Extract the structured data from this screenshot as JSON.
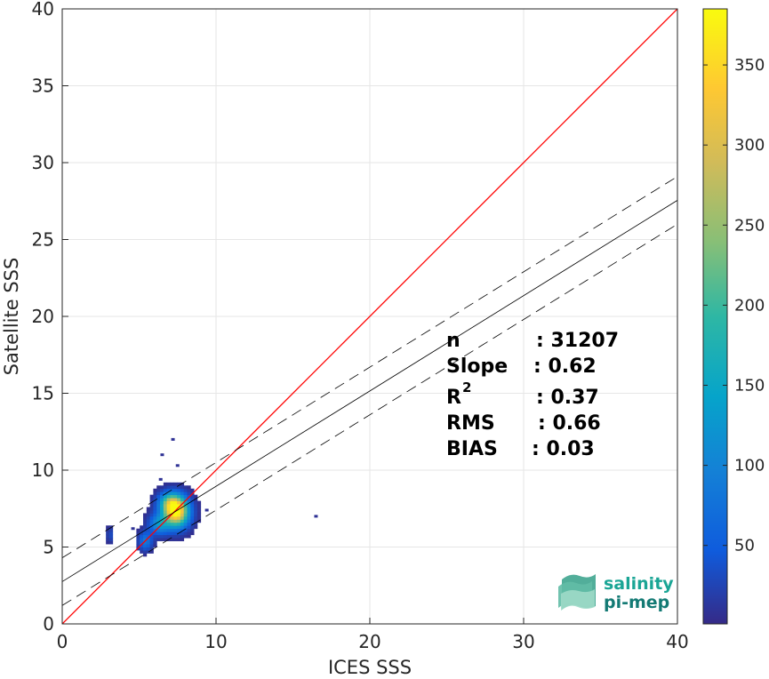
{
  "chart_data": {
    "type": "heatmap",
    "title": "",
    "xlabel": "ICES SSS",
    "ylabel": "Satellite SSS",
    "xlim": [
      0,
      40
    ],
    "ylim": [
      0,
      40
    ],
    "x_ticks": [
      "0",
      "10",
      "20",
      "30",
      "40"
    ],
    "y_ticks": [
      "0",
      "5",
      "10",
      "15",
      "20",
      "25",
      "30",
      "35",
      "40"
    ],
    "grid": true,
    "colorbar": {
      "min": 1,
      "max": 385,
      "ticks": [
        "50",
        "100",
        "150",
        "200",
        "250",
        "300",
        "350"
      ],
      "colormap": "parula"
    },
    "identity_line": {
      "intercept": 0,
      "slope": 1,
      "color": "#ff0000"
    },
    "fit_line": {
      "intercept": 2.75,
      "slope": 0.62,
      "color": "#000000"
    },
    "fit_bounds": {
      "offset": 1.55,
      "color": "#000000",
      "style": "dashed"
    },
    "density_clusters": [
      {
        "x": 7.3,
        "y": 7.2,
        "sx": 0.55,
        "sy": 0.65,
        "peak": 385
      },
      {
        "x": 6.9,
        "y": 7.8,
        "sx": 0.5,
        "sy": 0.45,
        "peak": 160
      },
      {
        "x": 6.2,
        "y": 6.4,
        "sx": 0.45,
        "sy": 0.45,
        "peak": 120
      },
      {
        "x": 5.3,
        "y": 5.3,
        "sx": 0.3,
        "sy": 0.4,
        "peak": 90
      },
      {
        "x": 3.0,
        "y": 5.7,
        "sx": 0.15,
        "sy": 0.35,
        "peak": 35
      }
    ],
    "outliers": [
      {
        "x": 7.2,
        "y": 12.0
      },
      {
        "x": 6.5,
        "y": 11.0
      },
      {
        "x": 7.5,
        "y": 10.3
      },
      {
        "x": 16.5,
        "y": 7.0
      },
      {
        "x": 9.4,
        "y": 7.4
      },
      {
        "x": 8.9,
        "y": 7.2
      },
      {
        "x": 4.6,
        "y": 6.2
      },
      {
        "x": 6.4,
        "y": 9.4
      }
    ]
  },
  "stats": {
    "rows": [
      {
        "label": "n",
        "value": ": 31207"
      },
      {
        "label": "Slope",
        "value": ": 0.62"
      },
      {
        "label": "R",
        "sup": "2",
        "value": ": 0.37"
      },
      {
        "label": "RMS",
        "value": ": 0.66"
      },
      {
        "label": "BIAS",
        "value": ": 0.03"
      }
    ]
  },
  "logo": {
    "line1": "salinity",
    "line2": "pi-mep"
  }
}
